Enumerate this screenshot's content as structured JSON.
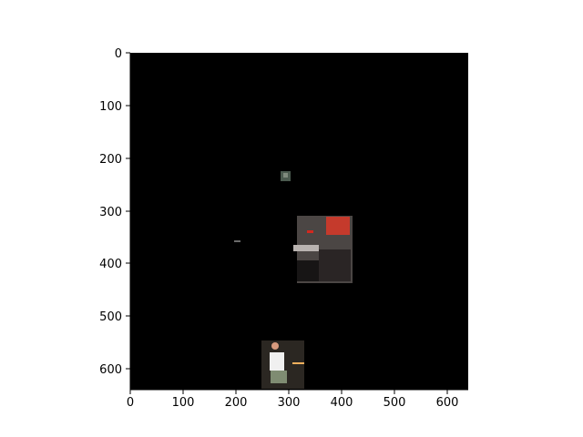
{
  "figure": {
    "background": "#ffffff",
    "image_extent": {
      "xlim": [
        0,
        640
      ],
      "ylim": [
        640,
        0
      ]
    },
    "x_ticks": [
      "0",
      "100",
      "200",
      "300",
      "400",
      "500",
      "600"
    ],
    "y_ticks": [
      "0",
      "100",
      "200",
      "300",
      "400",
      "500",
      "600"
    ],
    "image_description": "Mostly black masked image with a few visible patches: a small square near x≈290–300, y≈230–245; a larger photo patch near x≈315–420, y≈310–440 showing a room with red/orange objects; a tiny gray dash near x≈200, y≈358; and a bottom patch near x≈250–330, y≈550–640 showing a person in a white shirt."
  }
}
